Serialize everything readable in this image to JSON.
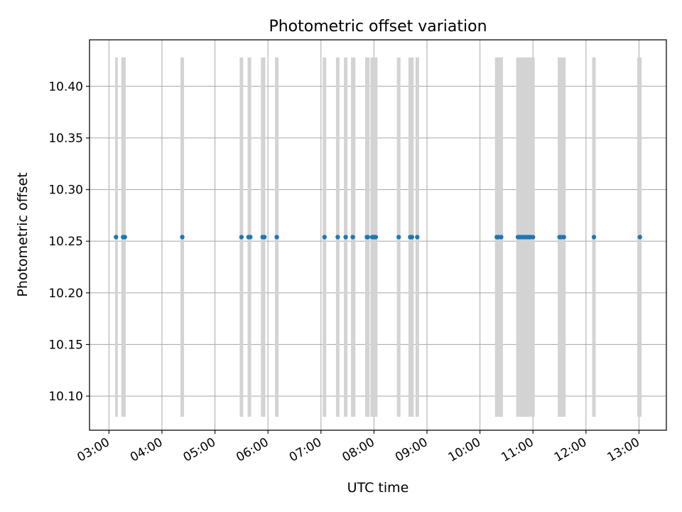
{
  "chart_data": {
    "type": "scatter",
    "title": "Photometric offset variation",
    "xlabel": "UTC time",
    "ylabel": "Photometric offset",
    "xlim": [
      "02:38",
      "13:31"
    ],
    "ylim": [
      10.067,
      10.445
    ],
    "x_ticks": [
      "03:00",
      "04:00",
      "05:00",
      "06:00",
      "07:00",
      "08:00",
      "09:00",
      "10:00",
      "11:00",
      "12:00",
      "13:00"
    ],
    "y_ticks": [
      "10.10",
      "10.15",
      "10.20",
      "10.25",
      "10.30",
      "10.35",
      "10.40"
    ],
    "grid": true,
    "exposure_bands": {
      "color": "#d3d3d3",
      "y_range": [
        10.08,
        10.428
      ],
      "intervals": [
        [
          "03:07",
          "03:10"
        ],
        [
          "03:14",
          "03:19"
        ],
        [
          "04:21",
          "04:25"
        ],
        [
          "05:28",
          "05:32"
        ],
        [
          "05:37",
          "05:41"
        ],
        [
          "05:52",
          "05:57"
        ],
        [
          "06:08",
          "06:12"
        ],
        [
          "07:02",
          "07:06"
        ],
        [
          "07:17",
          "07:21"
        ],
        [
          "07:26",
          "07:30"
        ],
        [
          "07:34",
          "07:39"
        ],
        [
          "07:50",
          "07:55"
        ],
        [
          "07:56",
          "08:04"
        ],
        [
          "08:26",
          "08:30"
        ],
        [
          "08:39",
          "08:45"
        ],
        [
          "08:47",
          "08:51"
        ],
        [
          "10:17",
          "10:26"
        ],
        [
          "10:41",
          "11:02"
        ],
        [
          "11:28",
          "11:37"
        ],
        [
          "12:07",
          "12:11"
        ],
        [
          "12:58",
          "13:03"
        ]
      ]
    },
    "series": [
      {
        "color": "#1f77b4",
        "x": [
          "03:08",
          "03:16",
          "03:18",
          "04:23",
          "05:30",
          "05:38",
          "05:40",
          "05:54",
          "05:56",
          "06:10",
          "07:04",
          "07:19",
          "07:28",
          "07:36",
          "07:52",
          "07:53",
          "07:58",
          "08:00",
          "08:02",
          "08:28",
          "08:41",
          "08:43",
          "08:49",
          "10:19",
          "10:21",
          "10:24",
          "10:43",
          "10:45",
          "10:47",
          "10:49",
          "10:51",
          "10:53",
          "10:55",
          "10:57",
          "11:00",
          "11:30",
          "11:32",
          "11:35",
          "12:09",
          "13:01"
        ],
        "y": [
          10.254,
          10.254,
          10.254,
          10.254,
          10.254,
          10.254,
          10.254,
          10.254,
          10.254,
          10.254,
          10.254,
          10.254,
          10.254,
          10.254,
          10.254,
          10.254,
          10.254,
          10.254,
          10.254,
          10.254,
          10.254,
          10.254,
          10.254,
          10.254,
          10.254,
          10.254,
          10.254,
          10.254,
          10.254,
          10.254,
          10.254,
          10.254,
          10.254,
          10.254,
          10.254,
          10.254,
          10.254,
          10.254,
          10.254,
          10.254
        ]
      }
    ]
  }
}
